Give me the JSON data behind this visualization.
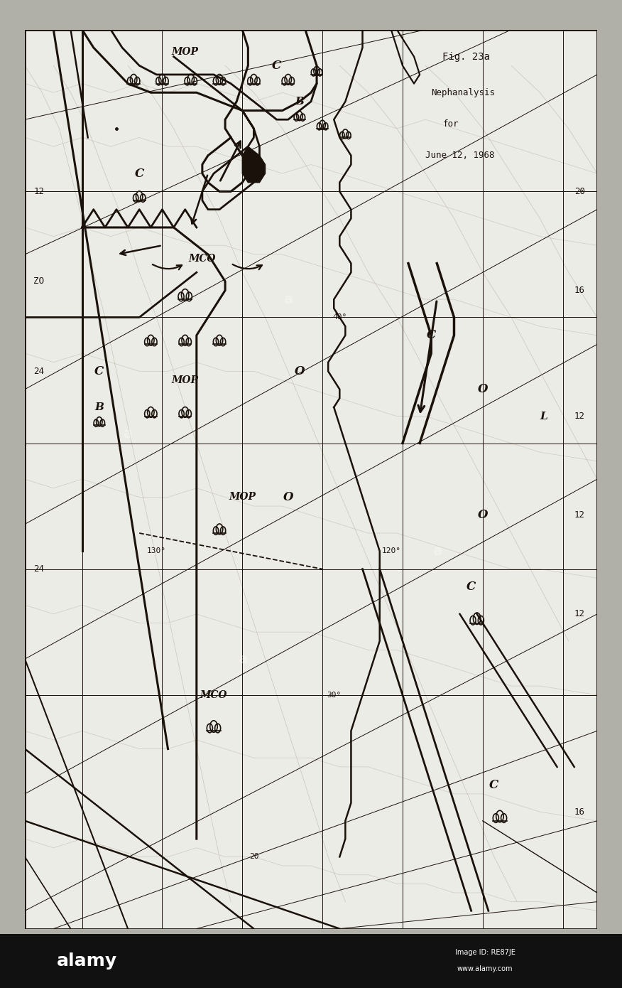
{
  "title": "Fig. 23a",
  "subtitle1": "Nephanalysis",
  "subtitle2": "for",
  "subtitle3": "June 12, 1968",
  "bg_outer": "#b0b0a8",
  "bg_map": "#eeeee8",
  "bg_map2": "#e8e8e2",
  "tc": "#1a120a",
  "contour_col": "#c0bdb0",
  "figure_width": 8.76,
  "figure_height": 13.9
}
